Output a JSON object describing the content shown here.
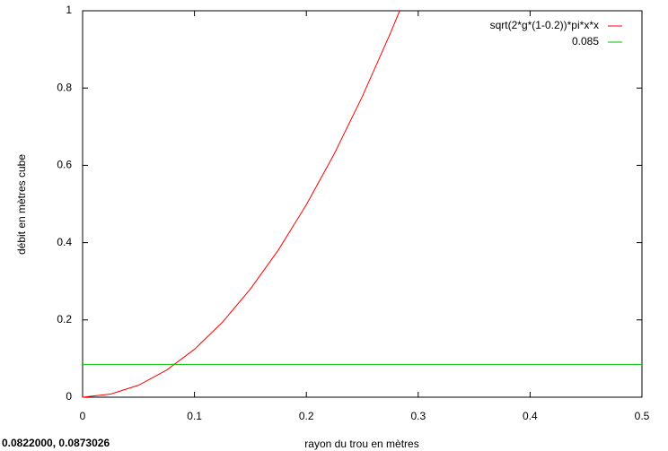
{
  "chart_data": {
    "type": "line",
    "xlabel": "rayon du trou en mètres",
    "ylabel": "débit en mètres cube",
    "status": "0.0822000,  0.0873026",
    "xlim": [
      0,
      0.5
    ],
    "ylim": [
      0,
      1
    ],
    "xticks": [
      0,
      0.1,
      0.2,
      0.3,
      0.4,
      0.5
    ],
    "yticks": [
      0,
      0.2,
      0.4,
      0.6,
      0.8,
      1
    ],
    "legend": "top-right",
    "series": [
      {
        "name": "sqrt(2*g*(1-0.2))*pi*x*x",
        "color": "#ff0000",
        "x": [
          0,
          0.025,
          0.05,
          0.075,
          0.1,
          0.125,
          0.15,
          0.175,
          0.2,
          0.225,
          0.25,
          0.275,
          0.2834
        ],
        "values": [
          0,
          0.008,
          0.031,
          0.07,
          0.124,
          0.194,
          0.28,
          0.381,
          0.498,
          0.63,
          0.778,
          0.941,
          1
        ]
      },
      {
        "name": "0.085",
        "color": "#00c000",
        "x": [
          0,
          0.5
        ],
        "values": [
          0.085,
          0.085
        ]
      }
    ]
  }
}
